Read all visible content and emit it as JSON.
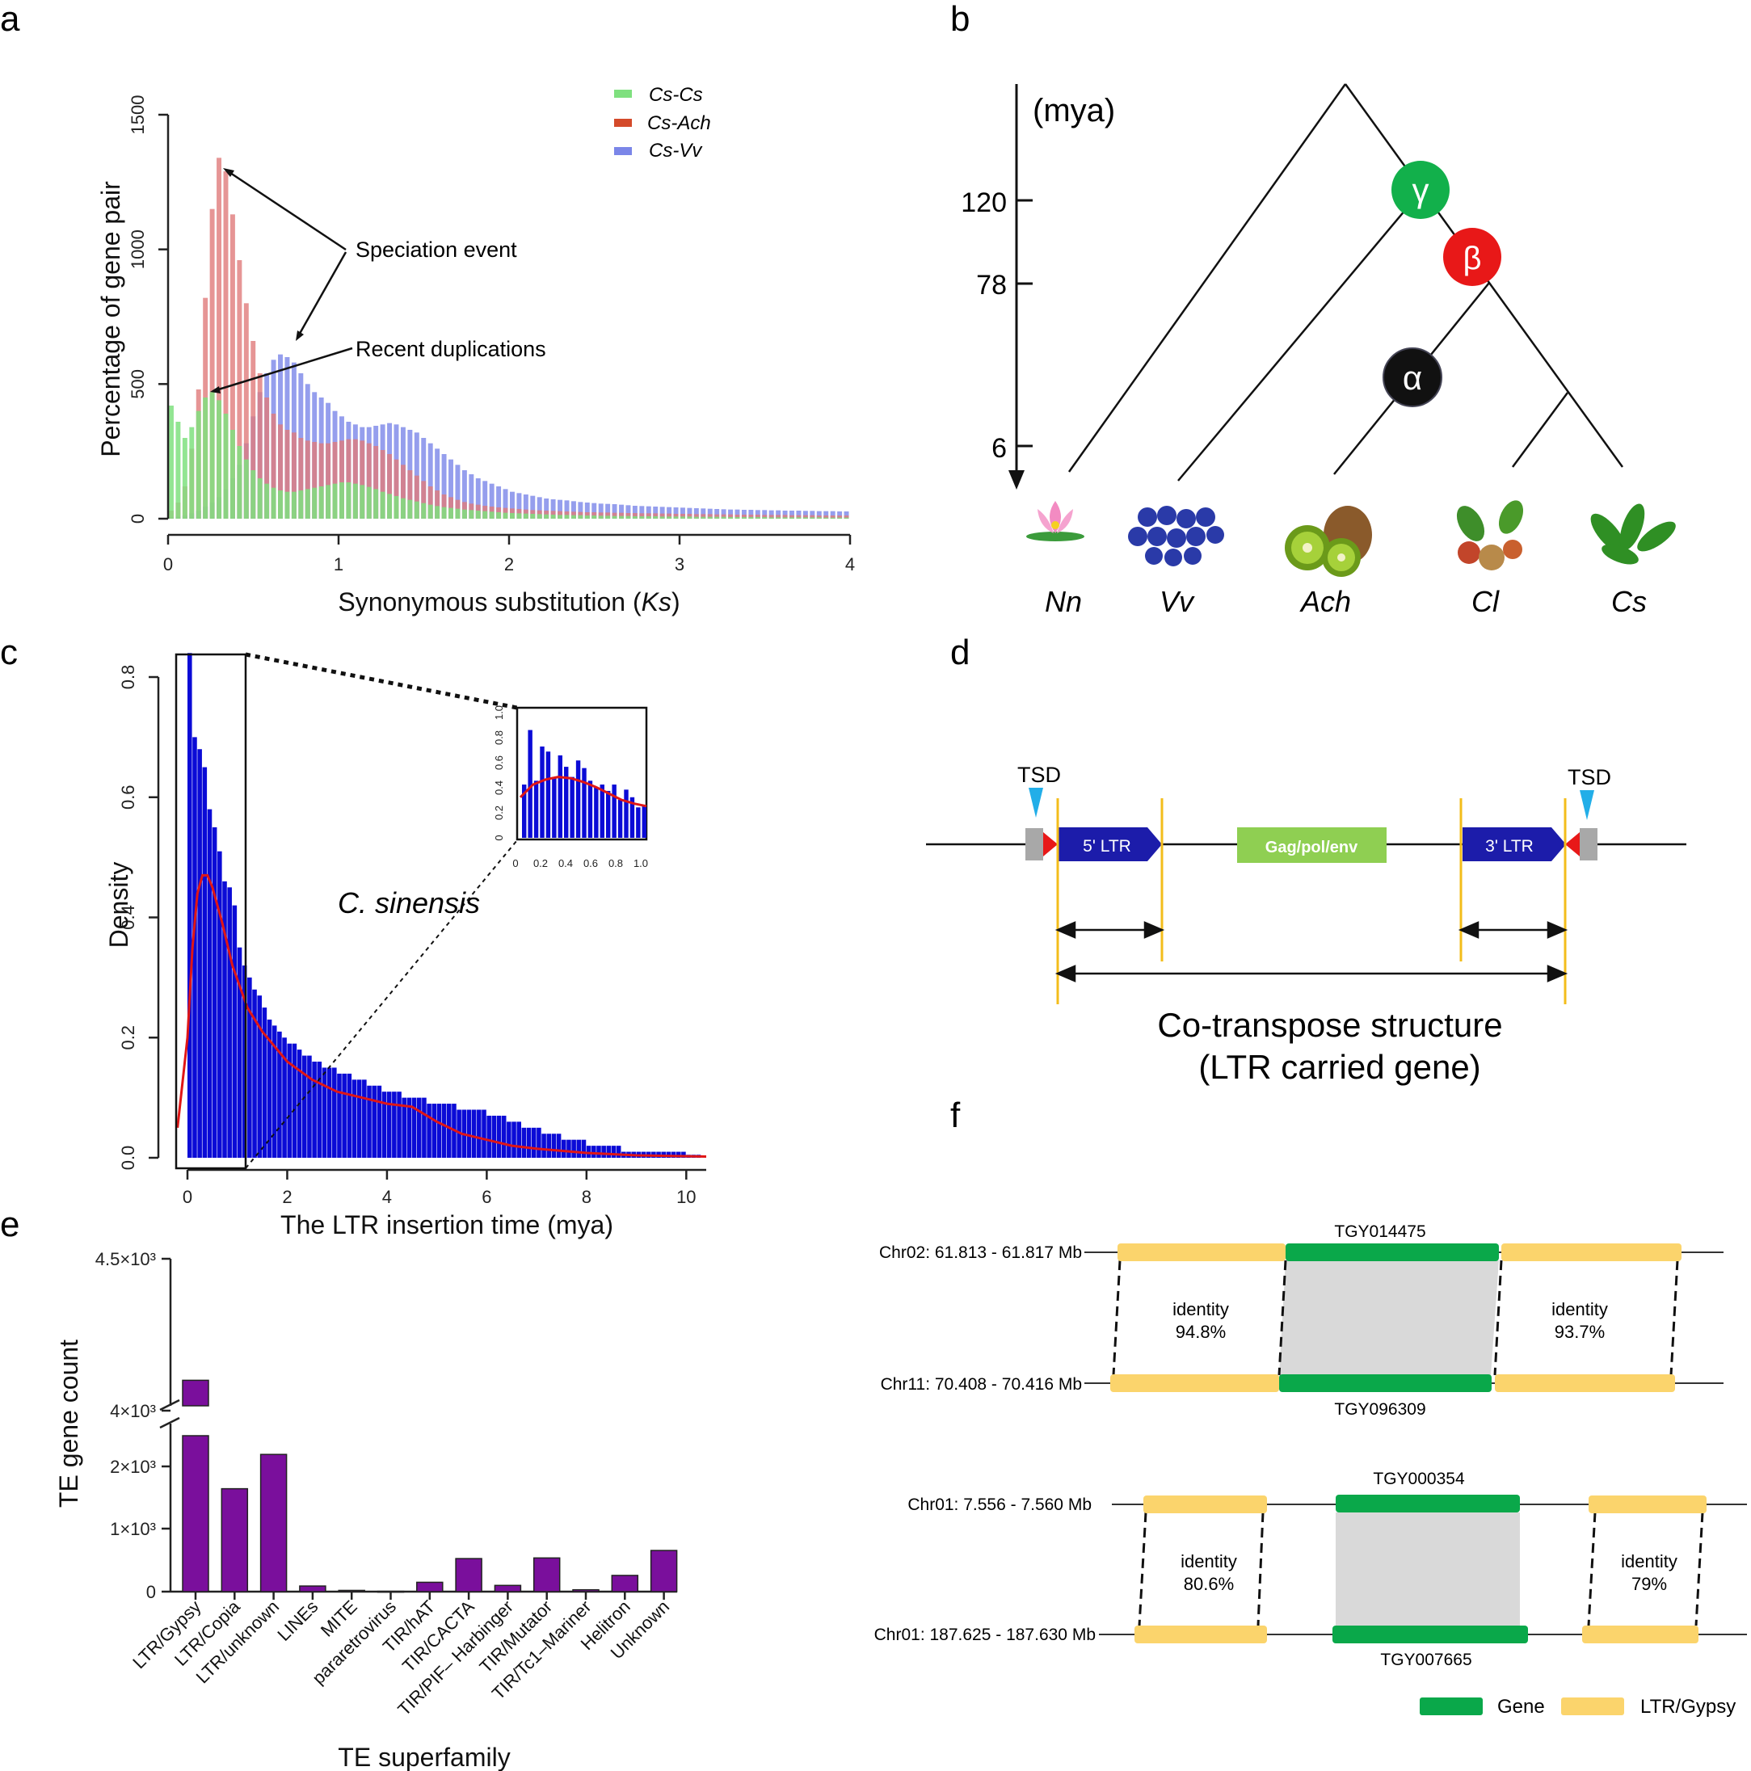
{
  "panels": {
    "a": "a",
    "b": "b",
    "c": "c",
    "d": "d",
    "e": "e",
    "f": "f"
  },
  "chart_data": [
    {
      "id": "a",
      "type": "bar",
      "title": "",
      "xlabel_prefix": "Synonymous substitution (",
      "xlabel_var": "Ks",
      "xlabel_suffix": ")",
      "ylabel": "Percentage of gene pair",
      "xlim": [
        0,
        4
      ],
      "ylim": [
        0,
        1500
      ],
      "xticks": [
        "0",
        "1",
        "2",
        "3",
        "4"
      ],
      "yticks": [
        "0",
        "500",
        "1000",
        "1500"
      ],
      "bin_width": 0.04,
      "series": [
        {
          "name": "Cs-Vv",
          "color": "#7b86e8",
          "values": [
            5,
            8,
            12,
            20,
            30,
            45,
            60,
            80,
            110,
            150,
            200,
            280,
            380,
            470,
            540,
            590,
            610,
            600,
            580,
            540,
            500,
            470,
            450,
            430,
            400,
            380,
            360,
            350,
            340,
            340,
            345,
            350,
            355,
            350,
            340,
            330,
            320,
            300,
            280,
            260,
            240,
            220,
            200,
            180,
            165,
            150,
            140,
            130,
            120,
            110,
            100,
            95,
            90,
            85,
            80,
            75,
            72,
            70,
            68,
            65,
            62,
            60,
            58,
            56,
            55,
            54,
            52,
            50,
            48,
            47,
            46,
            45,
            44,
            43,
            42,
            41,
            40,
            39,
            38,
            37,
            36,
            35,
            34,
            34,
            33,
            33,
            32,
            32,
            31,
            31,
            30,
            30,
            30,
            29,
            29,
            28,
            28,
            28,
            27,
            27
          ]
        },
        {
          "name": "Cs-Ach",
          "color": "#e07a7a",
          "values": [
            30,
            60,
            120,
            260,
            480,
            820,
            1150,
            1340,
            1290,
            1130,
            960,
            800,
            660,
            540,
            450,
            390,
            350,
            330,
            320,
            300,
            290,
            285,
            280,
            280,
            285,
            290,
            295,
            295,
            290,
            280,
            270,
            255,
            240,
            220,
            200,
            180,
            160,
            140,
            120,
            105,
            90,
            80,
            70,
            62,
            56,
            52,
            48,
            45,
            42,
            40,
            38,
            36,
            34,
            32,
            31,
            30,
            29,
            28,
            27,
            26,
            25,
            24,
            24,
            23,
            23,
            22,
            22,
            21,
            21,
            20,
            20,
            20,
            19,
            19,
            18,
            18,
            18,
            17,
            17,
            17,
            16,
            16,
            16,
            15,
            15,
            15,
            15,
            14,
            14,
            14,
            14,
            13,
            13,
            13,
            13,
            12,
            12,
            12,
            12,
            12
          ]
        },
        {
          "name": "Cs-Cs",
          "color": "#7fe07f",
          "values": [
            420,
            360,
            300,
            340,
            400,
            450,
            470,
            440,
            390,
            330,
            270,
            220,
            180,
            150,
            130,
            115,
            105,
            100,
            100,
            105,
            110,
            115,
            120,
            125,
            130,
            135,
            135,
            130,
            125,
            118,
            110,
            100,
            92,
            84,
            76,
            70,
            64,
            58,
            52,
            47,
            43,
            40,
            37,
            34,
            32,
            30,
            28,
            26,
            24,
            22,
            21,
            20,
            19,
            18,
            17,
            16,
            15,
            14,
            14,
            13,
            13,
            12,
            12,
            11,
            11,
            10,
            10,
            10,
            9,
            9,
            9,
            9,
            8,
            8,
            8,
            8,
            8,
            7,
            7,
            7,
            7,
            7,
            6,
            6,
            6,
            6,
            6,
            6,
            5,
            5,
            5,
            5,
            5,
            5,
            5,
            5,
            4,
            4,
            4,
            4
          ]
        }
      ],
      "legend": [
        {
          "label": "Cs-Cs",
          "color": "#7fe07f"
        },
        {
          "label": "Cs-Ach",
          "color": "#d44a2a"
        },
        {
          "label": "Cs-Vv",
          "color": "#7b86e8"
        }
      ],
      "annotations": {
        "speciation": "Speciation event",
        "recent": "Recent duplications"
      }
    },
    {
      "id": "c",
      "type": "bar",
      "title": "C. sinensis",
      "xlabel": "The LTR insertion time (mya)",
      "ylabel": "Density",
      "xlim": [
        0,
        10.4
      ],
      "ylim": [
        0,
        0.8
      ],
      "xticks": [
        "0",
        "2",
        "4",
        "6",
        "8",
        "10"
      ],
      "yticks": [
        "0.0",
        "0.2",
        "0.4",
        "0.6",
        "0.8"
      ],
      "bar_color": "#0b0bd6",
      "density_color": "#e01616",
      "bin_width": 0.1,
      "values": [
        0.84,
        0.7,
        0.68,
        0.65,
        0.58,
        0.55,
        0.51,
        0.46,
        0.45,
        0.42,
        0.35,
        0.32,
        0.3,
        0.28,
        0.27,
        0.25,
        0.23,
        0.22,
        0.21,
        0.2,
        0.19,
        0.19,
        0.18,
        0.17,
        0.17,
        0.16,
        0.16,
        0.15,
        0.15,
        0.15,
        0.14,
        0.14,
        0.14,
        0.13,
        0.13,
        0.13,
        0.12,
        0.12,
        0.12,
        0.11,
        0.11,
        0.11,
        0.11,
        0.1,
        0.1,
        0.1,
        0.1,
        0.1,
        0.09,
        0.09,
        0.09,
        0.09,
        0.09,
        0.09,
        0.08,
        0.08,
        0.08,
        0.08,
        0.08,
        0.08,
        0.07,
        0.07,
        0.07,
        0.07,
        0.06,
        0.06,
        0.06,
        0.05,
        0.05,
        0.05,
        0.05,
        0.04,
        0.04,
        0.04,
        0.04,
        0.03,
        0.03,
        0.03,
        0.03,
        0.03,
        0.02,
        0.02,
        0.02,
        0.02,
        0.02,
        0.02,
        0.02,
        0.01,
        0.01,
        0.01,
        0.01,
        0.01,
        0.01,
        0.01,
        0.01,
        0.01,
        0.01,
        0.01,
        0.01,
        0.01,
        0.005,
        0.005,
        0.005
      ],
      "density_x": [
        -0.2,
        0,
        0.1,
        0.2,
        0.3,
        0.4,
        0.5,
        0.7,
        0.9,
        1.2,
        1.5,
        2.0,
        2.5,
        3.0,
        3.5,
        4.0,
        4.5,
        5.0,
        5.5,
        6.0,
        6.5,
        7.0,
        8.0,
        9.0,
        10.4
      ],
      "density_y": [
        0.05,
        0.2,
        0.35,
        0.44,
        0.47,
        0.47,
        0.45,
        0.39,
        0.32,
        0.25,
        0.21,
        0.16,
        0.13,
        0.11,
        0.1,
        0.09,
        0.085,
        0.06,
        0.04,
        0.03,
        0.02,
        0.015,
        0.008,
        0.004,
        0.002
      ],
      "inset": {
        "xticks": [
          "0",
          "0.2",
          "0.4",
          "0.6",
          "0.8",
          "1.0"
        ],
        "yticks": [
          "0",
          "0.2",
          "0.4",
          "0.6",
          "0.8",
          "1.0"
        ],
        "values": [
          0.42,
          0.85,
          0.45,
          0.72,
          0.68,
          0.48,
          0.65,
          0.56,
          0.48,
          0.61,
          0.55,
          0.45,
          0.4,
          0.42,
          0.37,
          0.42,
          0.3,
          0.38,
          0.32,
          0.24,
          0.25
        ],
        "density_y": [
          0.32,
          0.42,
          0.46,
          0.48,
          0.47,
          0.44,
          0.4,
          0.35,
          0.3,
          0.27,
          0.25
        ]
      }
    },
    {
      "id": "e",
      "type": "bar",
      "xlabel": "TE superfamily",
      "ylabel": "TE gene count",
      "bar_color": "#7a0f9c",
      "categories": [
        "LTR/Gypsy",
        "LTR/Copia",
        "LTR/unknown",
        "LINEs",
        "MITE",
        "pararetrovirus",
        "TIR/hAT",
        "TIR/CACTA",
        "TIR/PIF– Harbinger",
        "TIR/Mutator",
        "TIR/Tc1–Mariner",
        "Helitron",
        "Unknown"
      ],
      "values": [
        4100,
        1650,
        2200,
        90,
        20,
        5,
        150,
        530,
        100,
        540,
        30,
        260,
        660
      ],
      "ylim_lower": [
        0,
        2500
      ],
      "ylim_upper": [
        3950,
        4500
      ],
      "yticks": {
        "t0": "0",
        "t1000": "1×10³",
        "t2000": "2×10³",
        "t4000": "4×10³",
        "t4500": "4.5×10³"
      }
    }
  ],
  "panel_b": {
    "axis_unit": "(mya)",
    "ticks": [
      "120",
      "78",
      "6"
    ],
    "taxa": [
      "Nn",
      "Vv",
      "Ach",
      "Cl",
      "Cs"
    ],
    "events": [
      {
        "symbol": "γ",
        "color": "#12b04b"
      },
      {
        "symbol": "β",
        "color": "#e81818"
      },
      {
        "symbol": "α",
        "color": "#111111"
      }
    ]
  },
  "panel_d": {
    "tsd_left": "TSD",
    "tsd_right": "TSD",
    "ltr5": "5' LTR",
    "gag": "Gag/pol/env",
    "ltr3": "3' LTR",
    "caption_line1": "Co-transpose structure",
    "caption_line2": "(LTR carried gene)"
  },
  "panel_f": {
    "pairs": [
      {
        "top_label": "Chr02: 61.813 - 61.817 Mb",
        "bottom_label": "Chr11: 70.408 - 70.416 Mb",
        "top_gene": "TGY014475",
        "bottom_gene": "TGY096309",
        "left_identity_label": "identity",
        "left_identity": "94.8%",
        "right_identity_label": "identity",
        "right_identity": "93.7%"
      },
      {
        "top_label": "Chr01: 7.556 - 7.560 Mb",
        "bottom_label": "Chr01: 187.625 - 187.630 Mb",
        "top_gene": "TGY000354",
        "bottom_gene": "TGY007665",
        "left_identity_label": "identity",
        "left_identity": "80.6%",
        "right_identity_label": "identity",
        "right_identity": "79%"
      }
    ],
    "legend": [
      {
        "label": "Gene",
        "color": "#0aa84a"
      },
      {
        "label": "LTR/Gypsy",
        "color": "#fbd46c"
      }
    ]
  }
}
